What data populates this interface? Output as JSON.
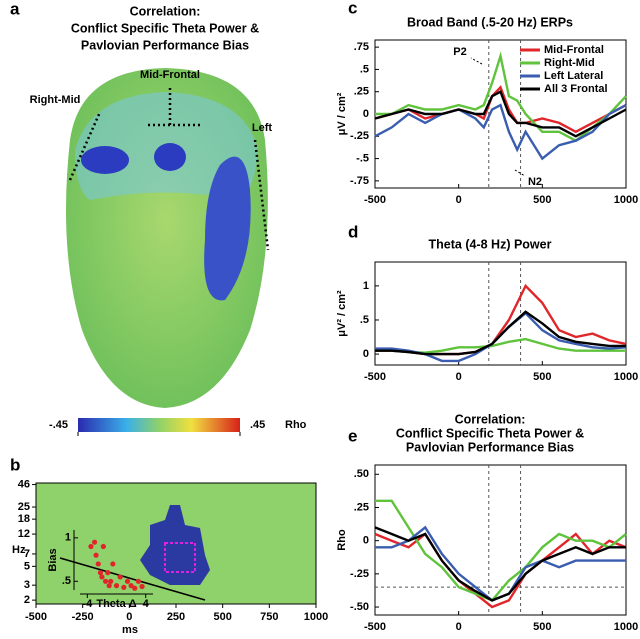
{
  "chart_data": [
    {
      "type": "topomap",
      "panel": "a",
      "title": [
        "Correlation:",
        "Conflict Specific Theta Power &",
        "Pavlovian Performance Bias"
      ],
      "regions": [
        "Right-Mid",
        "Mid-Frontal",
        "Left"
      ],
      "colorbar_ticks": [
        {
          "value": -0.45,
          "label": "-.45"
        },
        {
          "value": 0.45,
          "label": ".45"
        }
      ],
      "colorbar_label": "Rho"
    },
    {
      "type": "timefreq",
      "panel": "b",
      "xlim": [
        -500,
        1000
      ],
      "xticks": [
        -500,
        -250,
        0,
        250,
        500,
        750,
        1000
      ],
      "xlabel": "ms",
      "ylim": [
        1.8,
        48
      ],
      "log_y": true,
      "yticks": [
        2,
        3,
        5,
        7,
        12,
        18,
        25,
        46
      ],
      "ylabel": "Hz",
      "inset": {
        "type": "scatter",
        "color": "#e0262b",
        "xlim": [
          -5,
          5
        ],
        "xticks": [
          -4,
          4
        ],
        "xlabel": "Theta Δ",
        "ylim": [
          0.4,
          1.09
        ],
        "yticks": [
          1,
          {
            "value": 0.5,
            "label": ".5"
          }
        ],
        "ylabel": "Bias",
        "x": [
          -3.5,
          -3,
          -2.8,
          -2.5,
          -2.2,
          -2,
          -1.8,
          -1.5,
          -1.2,
          -1,
          -0.8,
          -0.5,
          0,
          0.5,
          1,
          1.5,
          2,
          2.5,
          3,
          3.5
        ],
        "y": [
          0.9,
          0.95,
          0.8,
          0.7,
          0.6,
          0.55,
          0.9,
          0.5,
          0.6,
          0.45,
          0.5,
          0.7,
          0.45,
          0.55,
          0.43,
          0.5,
          0.45,
          0.42,
          0.5,
          0.44
        ]
      }
    },
    {
      "type": "line",
      "panel": "c",
      "title": [
        "Broad Band (.5-20 Hz) ERPs"
      ],
      "ylabel": "μV / cm²",
      "xlim": [
        -500,
        1000
      ],
      "xticks": [
        -500,
        0,
        500,
        1000
      ],
      "ylim": [
        -0.83,
        0.83
      ],
      "yticks": [
        {
          "value": 0.75,
          "label": ".75"
        },
        {
          "value": 0.5,
          "label": ".5"
        },
        {
          "value": 0.25,
          "label": ".25"
        },
        0,
        {
          "value": -0.25,
          "label": "-.25"
        },
        {
          "value": -0.5,
          "label": "-.5"
        },
        {
          "value": -0.75,
          "label": "-.75"
        }
      ],
      "vlines": [
        180,
        370
      ],
      "annotations": [
        "P2",
        "N2"
      ],
      "x": [
        -500,
        -400,
        -300,
        -200,
        -100,
        0,
        100,
        150,
        200,
        250,
        300,
        350,
        400,
        500,
        600,
        700,
        800,
        900,
        1000
      ],
      "series": [
        {
          "name": "Mid-Frontal",
          "color": "#e0262b",
          "values": [
            -0.05,
            0,
            0.05,
            -0.05,
            0,
            0.05,
            0,
            -0.05,
            0.2,
            0.3,
            0.05,
            -0.1,
            -0.1,
            -0.05,
            -0.1,
            -0.2,
            -0.1,
            0,
            0.1
          ]
        },
        {
          "name": "Right-Mid",
          "color": "#5fc33c",
          "values": [
            0,
            0,
            0.1,
            0.05,
            0.05,
            0.1,
            0.05,
            0.1,
            0.35,
            0.65,
            0.2,
            0.15,
            0,
            -0.2,
            -0.2,
            -0.3,
            -0.15,
            0,
            0.2
          ]
        },
        {
          "name": "Left Lateral",
          "color": "#3a5db0",
          "values": [
            -0.25,
            -0.15,
            0,
            -0.1,
            0,
            0.05,
            -0.05,
            -0.15,
            0.05,
            0.1,
            -0.2,
            -0.4,
            -0.2,
            -0.5,
            -0.35,
            -0.3,
            -0.2,
            0,
            0.1
          ]
        },
        {
          "name": "All 3 Frontal",
          "color": "#000000",
          "values": [
            -0.05,
            0,
            0.05,
            0,
            0,
            0.05,
            0,
            0,
            0.2,
            0.25,
            0,
            -0.1,
            -0.1,
            -0.15,
            -0.15,
            -0.25,
            -0.15,
            -0.05,
            0.05
          ]
        }
      ]
    },
    {
      "type": "line",
      "panel": "d",
      "title": [
        "Theta (4-8 Hz) Power"
      ],
      "ylabel": "μV² / cm²",
      "xlim": [
        -500,
        1000
      ],
      "xticks": [
        -500,
        0,
        500,
        1000
      ],
      "ylim": [
        -0.16,
        1.35
      ],
      "yticks": [
        1,
        {
          "value": 0.5,
          "label": ".5"
        },
        0
      ],
      "vlines": [
        180,
        370
      ],
      "x": [
        -500,
        -400,
        -300,
        -200,
        -100,
        0,
        100,
        200,
        300,
        400,
        500,
        600,
        700,
        800,
        900,
        1000
      ],
      "series": [
        {
          "color": "#e0262b",
          "values": [
            0.05,
            0.05,
            0.03,
            0,
            0,
            0,
            0.03,
            0.15,
            0.5,
            1.0,
            0.75,
            0.35,
            0.25,
            0.3,
            0.2,
            0.15
          ]
        },
        {
          "color": "#5fc33c",
          "values": [
            0.05,
            0.05,
            0.03,
            0.02,
            0.05,
            0.1,
            0.1,
            0.12,
            0.18,
            0.22,
            0.15,
            0.08,
            0.05,
            0.05,
            0.05,
            0.05
          ]
        },
        {
          "color": "#3a5db0",
          "values": [
            0.08,
            0.08,
            0.05,
            0,
            -0.1,
            -0.1,
            0,
            0.15,
            0.4,
            0.6,
            0.35,
            0.2,
            0.15,
            0.1,
            0.08,
            0.1
          ]
        },
        {
          "color": "#000000",
          "values": [
            0.05,
            0.05,
            0.03,
            0,
            0,
            0,
            0.03,
            0.15,
            0.4,
            0.62,
            0.45,
            0.25,
            0.18,
            0.15,
            0.12,
            0.12
          ]
        }
      ]
    },
    {
      "type": "line",
      "panel": "e",
      "title": [
        "Correlation:",
        "Conflict Specific Theta Power &",
        "Pavlovian Performance Bias"
      ],
      "ylabel": "Rho",
      "xlim": [
        -500,
        1000
      ],
      "xticks": [
        -500,
        0,
        500,
        1000
      ],
      "ylim": [
        -0.56,
        0.57
      ],
      "yticks": [
        {
          "value": 0.5,
          "label": ".50"
        },
        {
          "value": 0.25,
          "label": ".25"
        },
        0,
        {
          "value": -0.25,
          "label": "-.25"
        },
        {
          "value": -0.5,
          "label": "-.50"
        }
      ],
      "vlines": [
        180,
        370
      ],
      "hline": -0.35,
      "x": [
        -500,
        -400,
        -300,
        -200,
        -100,
        0,
        100,
        200,
        300,
        400,
        500,
        600,
        700,
        800,
        900,
        1000
      ],
      "series": [
        {
          "color": "#e0262b",
          "values": [
            0.05,
            0,
            -0.05,
            0.05,
            -0.15,
            -0.3,
            -0.4,
            -0.5,
            -0.45,
            -0.25,
            -0.15,
            -0.05,
            0.05,
            -0.1,
            0,
            -0.05
          ]
        },
        {
          "color": "#5fc33c",
          "values": [
            0.3,
            0.3,
            0.1,
            -0.1,
            -0.2,
            -0.35,
            -0.4,
            -0.45,
            -0.3,
            -0.2,
            -0.05,
            0.05,
            0,
            0,
            -0.05,
            0.05
          ]
        },
        {
          "color": "#3a5db0",
          "values": [
            -0.05,
            -0.05,
            0,
            0.1,
            -0.1,
            -0.25,
            -0.35,
            -0.45,
            -0.4,
            -0.2,
            -0.15,
            -0.2,
            -0.15,
            -0.15,
            -0.15,
            -0.15
          ]
        },
        {
          "color": "#000000",
          "values": [
            0.1,
            0.05,
            0,
            0.05,
            -0.15,
            -0.3,
            -0.38,
            -0.45,
            -0.4,
            -0.25,
            -0.15,
            -0.1,
            -0.05,
            -0.1,
            -0.05,
            -0.05
          ]
        }
      ]
    }
  ]
}
